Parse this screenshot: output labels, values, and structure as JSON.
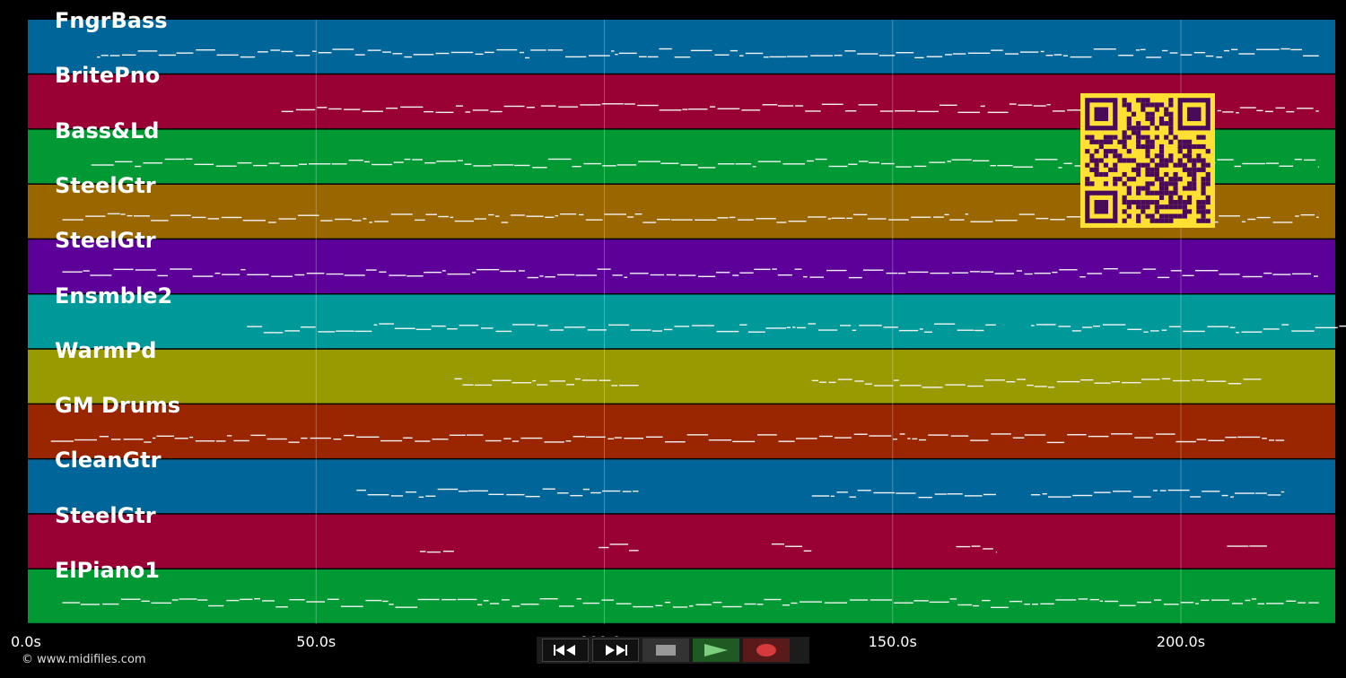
{
  "tracks": [
    {
      "name": "FngrBass",
      "color": "#006699"
    },
    {
      "name": "BritePno",
      "color": "#990033"
    },
    {
      "name": "Bass&Ld",
      "color": "#009933"
    },
    {
      "name": "SteelGtr",
      "color": "#996600"
    },
    {
      "name": "SteelGtr",
      "color": "#5c0099"
    },
    {
      "name": "Ensmble2",
      "color": "#009999"
    },
    {
      "name": "WarmPd",
      "color": "#999900"
    },
    {
      "name": "GM Drums",
      "color": "#992600"
    },
    {
      "name": "CleanGtr",
      "color": "#006699"
    },
    {
      "name": "SteelGtr",
      "color": "#990033"
    },
    {
      "name": "ElPiano1",
      "color": "#009933"
    }
  ],
  "time_axis": {
    "ticks": [
      {
        "seconds": 0,
        "label": "0.0s"
      },
      {
        "seconds": 50,
        "label": "50.0s"
      },
      {
        "seconds": 100,
        "label": "100.0s"
      },
      {
        "seconds": 150,
        "label": "150.0s"
      },
      {
        "seconds": 200,
        "label": "200.0s"
      }
    ]
  },
  "copyright": "© www.midifiles.com",
  "transport": {
    "rewind": "rewind-icon",
    "fast_forward": "fast-forward-icon",
    "stop": "stop-icon",
    "play": "play-icon",
    "record": "record-icon"
  },
  "qr_colors": {
    "fg": "#4a0a5a",
    "bg": "#ffe033"
  }
}
